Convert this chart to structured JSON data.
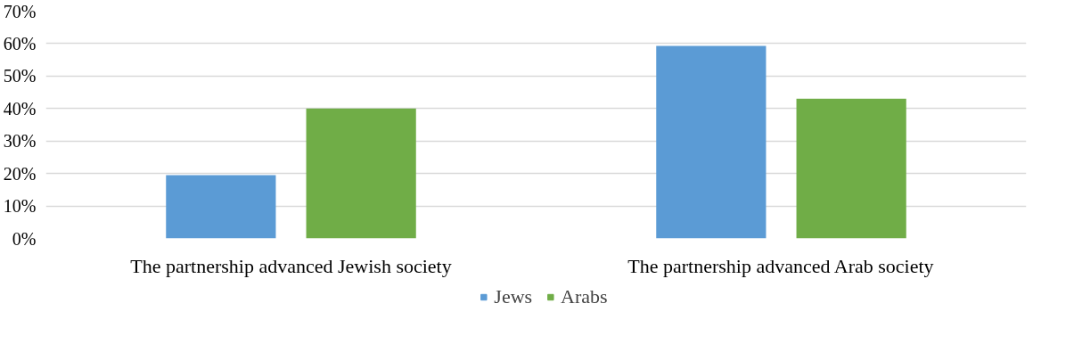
{
  "chart_data": {
    "type": "bar",
    "categories": [
      "The partnership advanced Jewish society",
      "The partnership advanced Arab society"
    ],
    "series": [
      {
        "name": "Jews",
        "color": "#5b9bd5",
        "values": [
          19.5,
          59.3
        ]
      },
      {
        "name": "Arabs",
        "color": "#70ad47",
        "values": [
          40,
          43
        ]
      }
    ],
    "ylim": [
      0,
      70
    ],
    "yticks": [
      {
        "value": 0,
        "label": "0%"
      },
      {
        "value": 10,
        "label": "10%"
      },
      {
        "value": 20,
        "label": "20%"
      },
      {
        "value": 30,
        "label": "30%"
      },
      {
        "value": 40,
        "label": "40%"
      },
      {
        "value": 50,
        "label": "50%"
      },
      {
        "value": 60,
        "label": "60%"
      },
      {
        "value": 70,
        "label": "70%"
      }
    ],
    "grid": "y",
    "legend": "bottom"
  }
}
